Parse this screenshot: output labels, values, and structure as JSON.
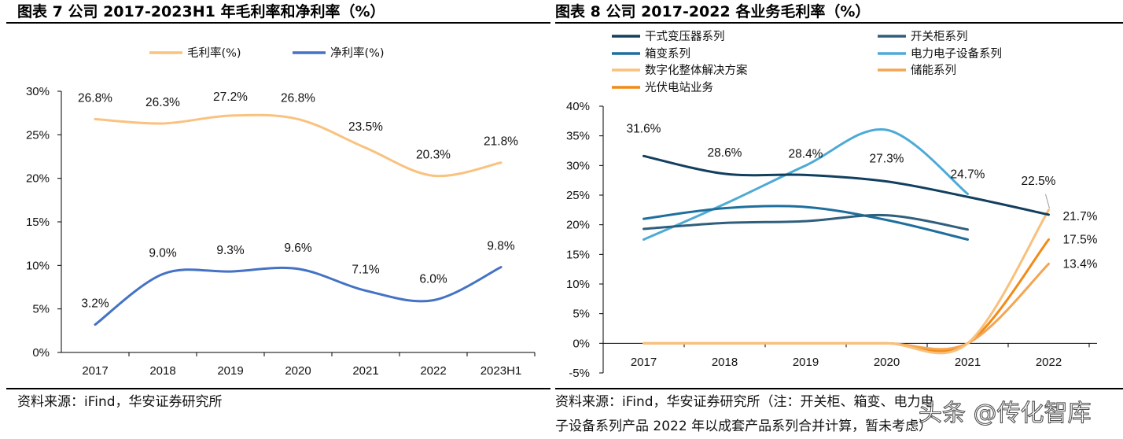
{
  "chart_data": [
    {
      "type": "line",
      "title": "图表 7 公司 2017-2023H1 年毛利率和净利率（%）",
      "categories": [
        "2017",
        "2018",
        "2019",
        "2020",
        "2021",
        "2022",
        "2023H1"
      ],
      "ylim": [
        0,
        30
      ],
      "yticks": [
        "0%",
        "5%",
        "10%",
        "15%",
        "20%",
        "25%",
        "30%"
      ],
      "grid": false,
      "legend": "top-center",
      "smooth": true,
      "series": [
        {
          "name": "毛利率(%)",
          "color": "#F9C27F",
          "values": [
            26.8,
            26.3,
            27.2,
            26.8,
            23.5,
            20.3,
            21.8
          ],
          "labels": [
            "26.8%",
            "26.3%",
            "27.2%",
            "26.8%",
            "23.5%",
            "20.3%",
            "21.8%"
          ]
        },
        {
          "name": "净利率(%)",
          "color": "#4472C4",
          "values": [
            3.2,
            9.0,
            9.3,
            9.6,
            7.1,
            6.0,
            9.8
          ],
          "labels": [
            "3.2%",
            "9.0%",
            "9.3%",
            "9.6%",
            "7.1%",
            "6.0%",
            "9.8%"
          ]
        }
      ],
      "source": "资料来源：iFind，华安证券研究所"
    },
    {
      "type": "line",
      "title": "图表 8 公司 2017-2022 各业务毛利率（%）",
      "categories": [
        "2017",
        "2018",
        "2019",
        "2020",
        "2021",
        "2022"
      ],
      "ylim": [
        -5,
        40
      ],
      "yticks": [
        "-5%",
        "0%",
        "5%",
        "10%",
        "15%",
        "20%",
        "25%",
        "30%",
        "35%",
        "40%"
      ],
      "grid": false,
      "legend": "top",
      "smooth": true,
      "series": [
        {
          "name": "干式变压器系列",
          "color": "#123F5E",
          "values": [
            31.6,
            28.6,
            28.4,
            27.3,
            24.7,
            21.7
          ],
          "labels": [
            "31.6%",
            "28.6%",
            "28.4%",
            "27.3%",
            "24.7%",
            "21.7%"
          ]
        },
        {
          "name": "开关柜系列",
          "color": "#2F5F7D",
          "values": [
            19.3,
            20.3,
            20.6,
            21.6,
            19.2,
            null
          ]
        },
        {
          "name": "箱变系列",
          "color": "#1E6F9E",
          "values": [
            21.0,
            22.8,
            23.0,
            20.8,
            17.5,
            null
          ]
        },
        {
          "name": "电力电子设备系列",
          "color": "#4DAAD6",
          "values": [
            17.5,
            23.5,
            30.0,
            36.0,
            25.2,
            null
          ]
        },
        {
          "name": "数字化整体解决方案",
          "color": "#F9C07C",
          "values": [
            0,
            0,
            0,
            0,
            0,
            22.5
          ],
          "labels": [
            null,
            null,
            null,
            null,
            null,
            "22.5%"
          ]
        },
        {
          "name": "储能系列",
          "color": "#F3A552",
          "values": [
            0,
            0,
            0,
            0,
            0,
            13.4
          ],
          "labels": [
            null,
            null,
            null,
            null,
            null,
            "13.4%"
          ]
        },
        {
          "name": "光伏电站业务",
          "color": "#F28A16",
          "values": [
            0,
            0,
            0,
            0,
            0,
            17.5
          ],
          "labels": [
            null,
            null,
            null,
            null,
            null,
            "17.5%"
          ]
        }
      ],
      "source_lines": [
        "资料来源：iFind，华安证券研究所（注：开关柜、箱变、电力电",
        "子设备系列产品 2022 年以成套产品系列合并计算，暂未考虑）"
      ]
    }
  ],
  "watermark": "头条 @传化智库"
}
